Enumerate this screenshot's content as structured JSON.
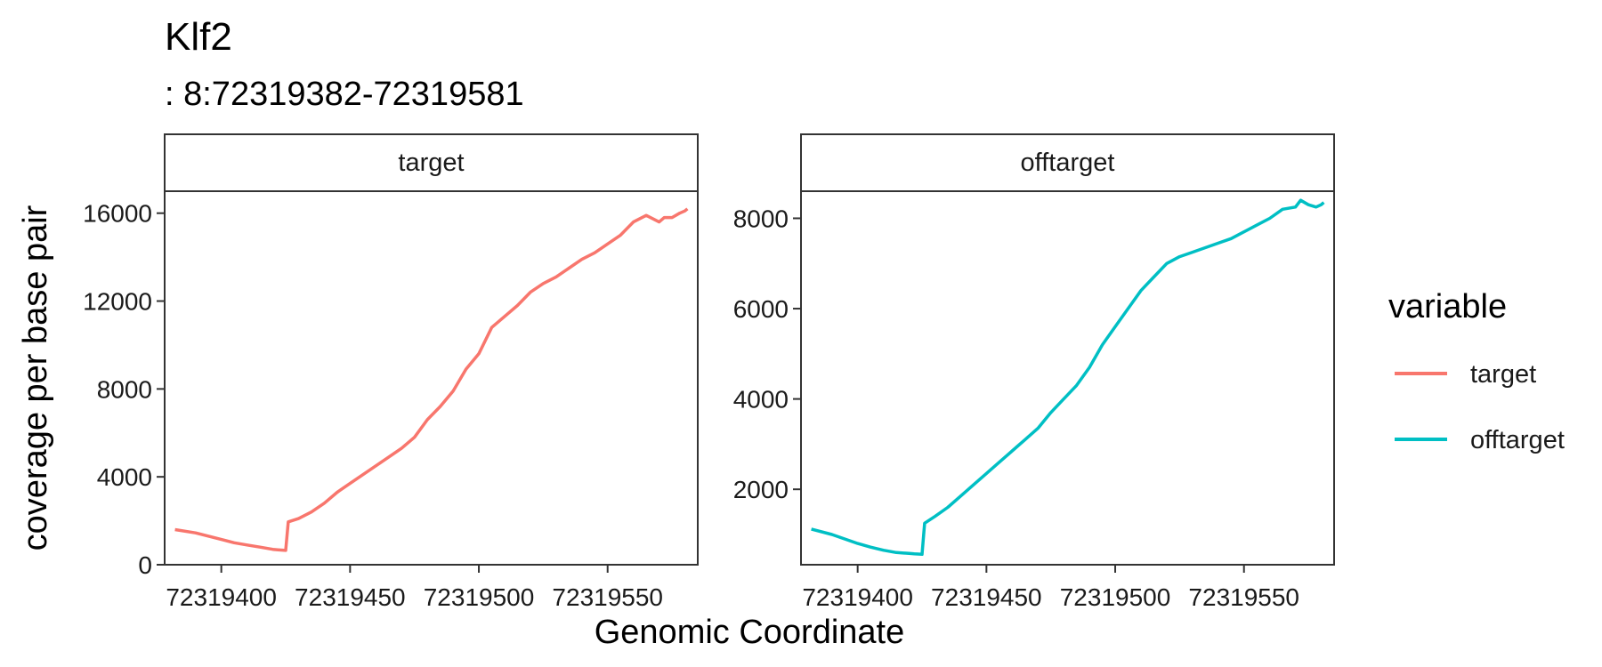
{
  "chart_data": {
    "type": "line",
    "title": "Klf2",
    "subtitle": ": 8:72319382-72319581",
    "xlabel": "Genomic Coordinate",
    "ylabel": "coverage per base pair",
    "legend": {
      "title": "variable",
      "placement": "right",
      "entries": [
        {
          "label": "target",
          "color": "#F8766D"
        },
        {
          "label": "offtarget",
          "color": "#00BFC4"
        }
      ]
    },
    "grid": false,
    "panels": [
      {
        "strip": "target",
        "color": "#F8766D",
        "xlim": [
          72319378,
          72319585
        ],
        "ylim": [
          0,
          17000
        ],
        "x_ticks": [
          72319400,
          72319450,
          72319500,
          72319550
        ],
        "x_tick_labels": [
          "72319400",
          "72319450",
          "72319500",
          "72319550"
        ],
        "y_ticks": [
          0,
          4000,
          8000,
          12000,
          16000
        ],
        "y_tick_labels": [
          "0",
          "4000",
          "8000",
          "12000",
          "16000"
        ],
        "x": [
          72319382,
          72319390,
          72319400,
          72319405,
          72319410,
          72319415,
          72319420,
          72319422,
          72319425,
          72319426,
          72319430,
          72319435,
          72319440,
          72319445,
          72319450,
          72319455,
          72319460,
          72319465,
          72319470,
          72319475,
          72319480,
          72319485,
          72319490,
          72319495,
          72319500,
          72319505,
          72319510,
          72319515,
          72319520,
          72319525,
          72319530,
          72319535,
          72319540,
          72319545,
          72319550,
          72319555,
          72319560,
          72319565,
          72319570,
          72319572,
          72319575,
          72319578,
          72319580,
          72319581
        ],
        "y": [
          1600,
          1450,
          1150,
          1000,
          900,
          800,
          700,
          680,
          650,
          1950,
          2100,
          2400,
          2800,
          3300,
          3700,
          4100,
          4500,
          4900,
          5300,
          5800,
          6600,
          7200,
          7900,
          8900,
          9600,
          10800,
          11300,
          11800,
          12400,
          12800,
          13100,
          13500,
          13900,
          14200,
          14600,
          15000,
          15600,
          15900,
          15600,
          15800,
          15800,
          16000,
          16100,
          16200
        ]
      },
      {
        "strip": "offtarget",
        "color": "#00BFC4",
        "xlim": [
          72319378,
          72319585
        ],
        "ylim": [
          330,
          8600
        ],
        "x_ticks": [
          72319400,
          72319450,
          72319500,
          72319550
        ],
        "x_tick_labels": [
          "72319400",
          "72319450",
          "72319500",
          "72319550"
        ],
        "y_ticks": [
          2000,
          4000,
          6000,
          8000
        ],
        "y_tick_labels": [
          "2000",
          "4000",
          "6000",
          "8000"
        ],
        "x": [
          72319382,
          72319390,
          72319400,
          72319405,
          72319410,
          72319415,
          72319420,
          72319422,
          72319425,
          72319426,
          72319430,
          72319435,
          72319440,
          72319445,
          72319450,
          72319455,
          72319460,
          72319465,
          72319470,
          72319475,
          72319480,
          72319485,
          72319490,
          72319495,
          72319500,
          72319505,
          72319510,
          72319515,
          72319520,
          72319525,
          72319530,
          72319535,
          72319540,
          72319545,
          72319550,
          72319555,
          72319560,
          72319565,
          72319570,
          72319572,
          72319575,
          72319578,
          72319580,
          72319581
        ],
        "y": [
          1120,
          1000,
          800,
          720,
          650,
          600,
          580,
          570,
          560,
          1250,
          1400,
          1600,
          1850,
          2100,
          2350,
          2600,
          2850,
          3100,
          3350,
          3700,
          4000,
          4300,
          4700,
          5200,
          5600,
          6000,
          6400,
          6700,
          7000,
          7150,
          7250,
          7350,
          7450,
          7550,
          7700,
          7850,
          8000,
          8200,
          8250,
          8400,
          8300,
          8250,
          8300,
          8350
        ]
      }
    ]
  }
}
